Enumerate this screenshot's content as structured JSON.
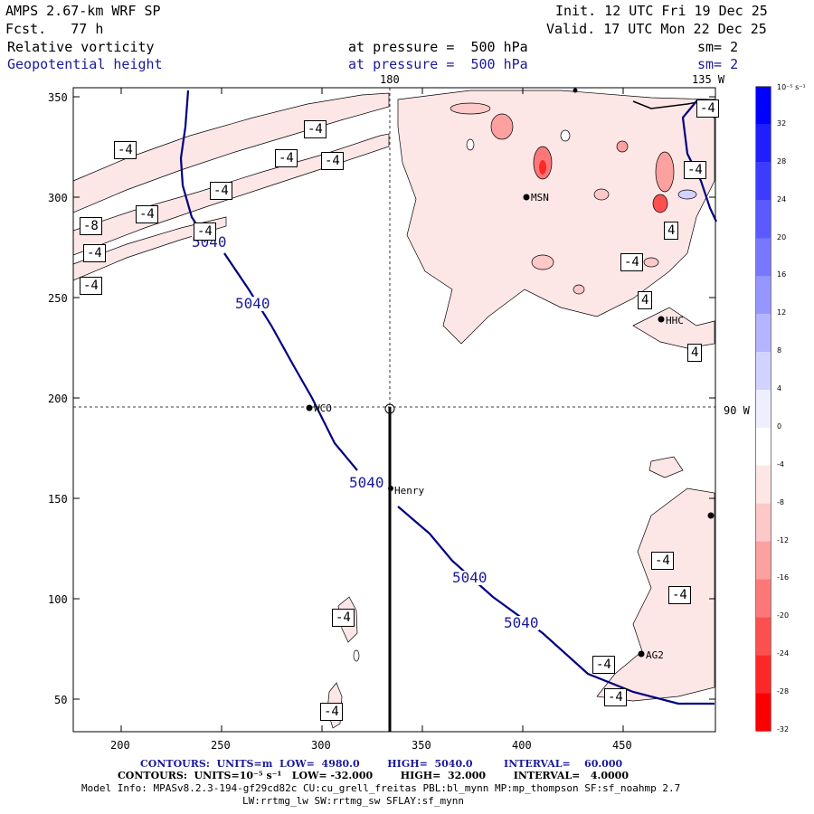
{
  "header": {
    "model": "AMPS 2.67-km WRF SP",
    "fcst": "Fcst.   77 h",
    "init": "Init. 12 UTC Fri 19 Dec 25",
    "valid": "Valid. 17 UTC Mon 22 Dec 25",
    "field1": "Relative vorticity",
    "field2": "Geopotential height",
    "pressure1": "at pressure =  500 hPa",
    "pressure2": "at pressure =  500 hPa",
    "sm1": "sm= 2",
    "sm2": "sm= 2"
  },
  "map": {
    "top_label_180": "180",
    "top_label_135w": "135 W",
    "right_label_90w": "90 W",
    "y_ticks": [
      "350",
      "300",
      "250",
      "200",
      "150",
      "100",
      "50"
    ],
    "x_ticks": [
      "200",
      "250",
      "300",
      "350",
      "400",
      "450"
    ],
    "stations": [
      "WCO",
      "Henry",
      "MSN",
      "HHC",
      "AG2"
    ],
    "height_contour_labels": [
      "5040",
      "5040",
      "5040",
      "5040",
      "5040"
    ],
    "vort_labels": [
      "-4",
      "-4",
      "-4",
      "-4",
      "-4",
      "-4",
      "-4",
      "-8",
      "-4",
      "-4",
      "-4",
      "-4",
      "-4",
      "-4",
      "-4",
      "-4",
      "-4",
      "-4",
      "4",
      "4",
      "-4",
      "4"
    ]
  },
  "colorbar": {
    "unit": "10⁻⁵ s⁻¹",
    "ticks": [
      "32",
      "28",
      "24",
      "20",
      "16",
      "12",
      "8",
      "4",
      "0",
      "-4",
      "-8",
      "-12",
      "-16",
      "-20",
      "-24",
      "-28",
      "-32"
    ],
    "colors": [
      "#0000ff",
      "#1e1eff",
      "#3c3cff",
      "#5a5aff",
      "#7878ff",
      "#9696ff",
      "#b4b4ff",
      "#d2d2ff",
      "#eeeeff",
      "#ffffff",
      "#fde6e6",
      "#fcc8c8",
      "#fca0a0",
      "#fc7878",
      "#fc5050",
      "#fc2828",
      "#fc0000"
    ]
  },
  "footer": {
    "contours1": "CONTOURS:  UNITS=m  LOW=  4980.0        HIGH=  5040.0         INTERVAL=    60.000",
    "contours2": "CONTOURS:  UNITS=10⁻⁵ s⁻¹   LOW= -32.000        HIGH=  32.000        INTERVAL=   4.0000",
    "model_info": "Model Info: MPASv8.2.3-194-gf29cd82c CU:cu_grell_freitas PBL:bl_mynn MP:mp_thompson SF:sf_noahmp 2.7",
    "model_info2": "LW:rrtmg_lw SW:rrtmg_sw SFLAY:sf_mynn"
  }
}
